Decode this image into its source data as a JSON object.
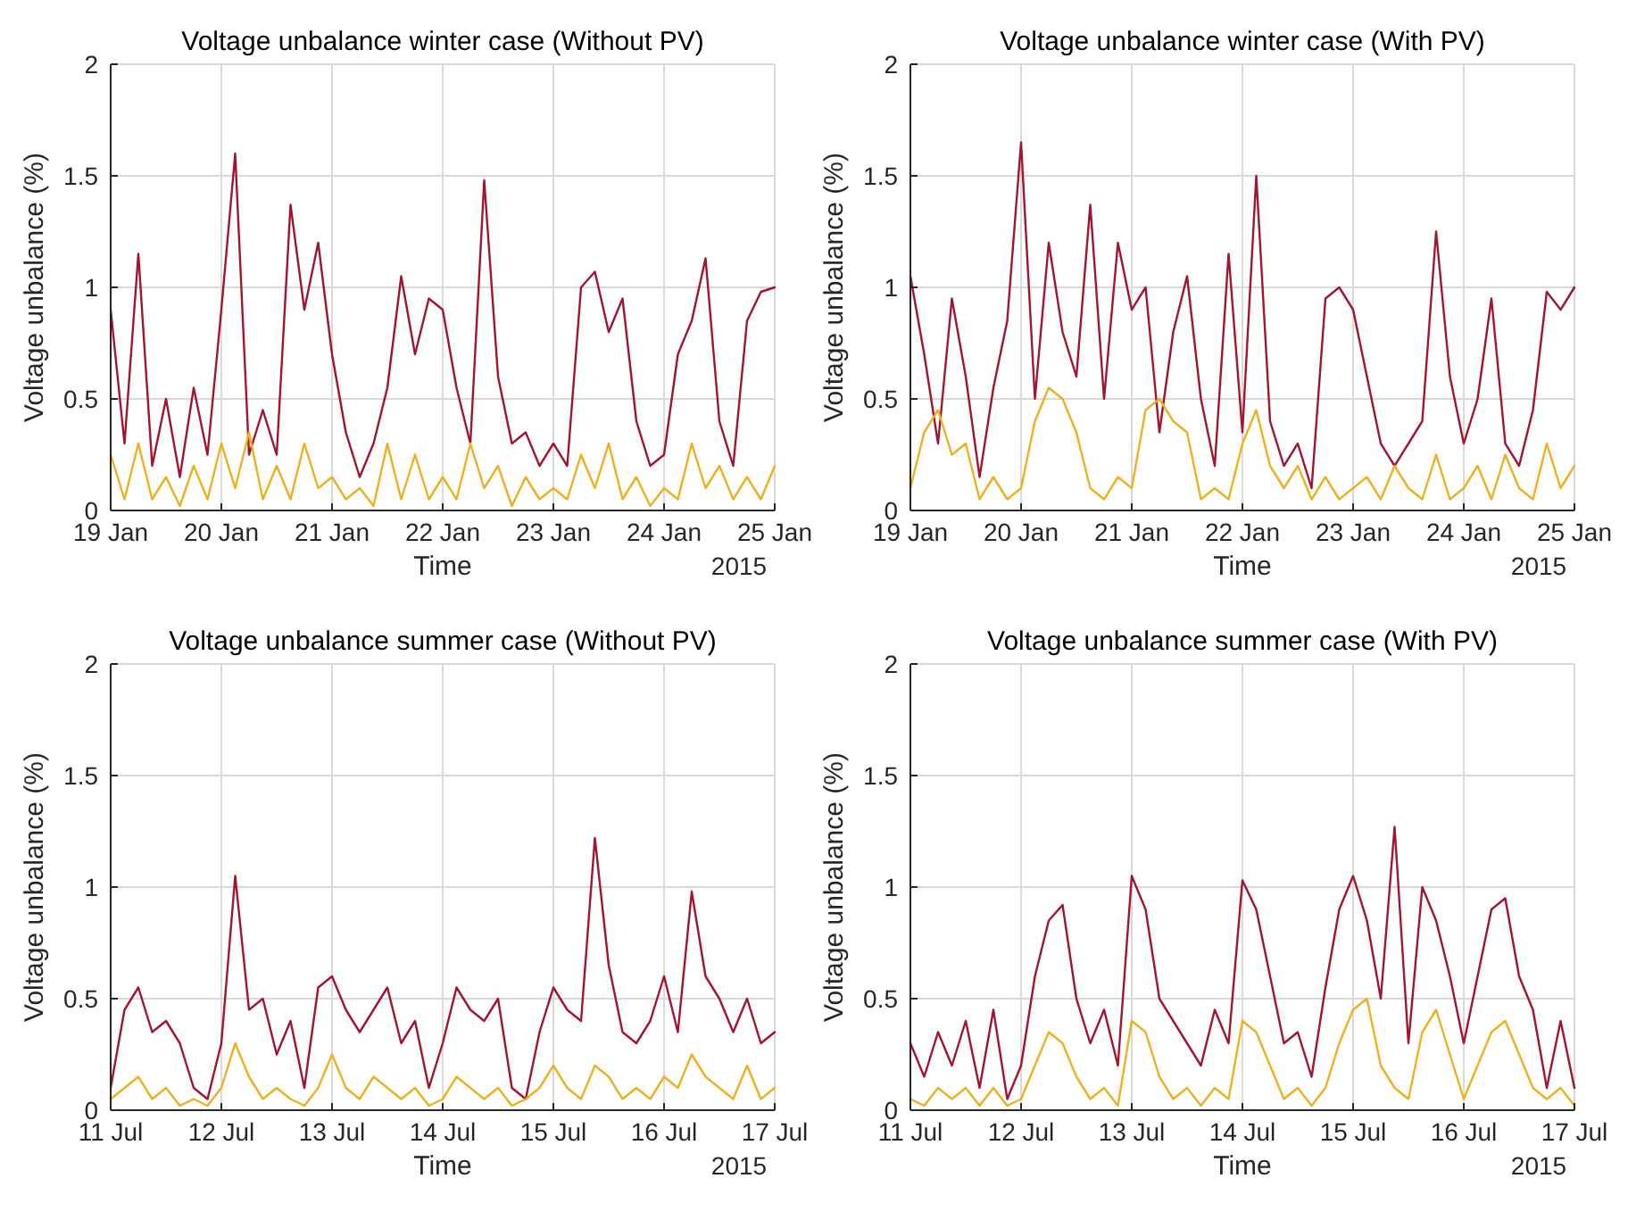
{
  "chart_data": [
    {
      "type": "line",
      "title": "Voltage unbalance winter case (Without PV)",
      "xlabel": "Time",
      "ylabel": "Voltage unbalance (%)",
      "annotations": [
        "2015"
      ],
      "grid": true,
      "ylim": [
        0,
        2
      ],
      "yticks": [
        0,
        0.5,
        1,
        1.5,
        2
      ],
      "xlim": [
        "2015-01-19",
        "2015-01-25"
      ],
      "xticks": [
        {
          "value": "2015-01-19",
          "label": "19 Jan"
        },
        {
          "value": "2015-01-20",
          "label": "20 Jan"
        },
        {
          "value": "2015-01-21",
          "label": "21 Jan"
        },
        {
          "value": "2015-01-22",
          "label": "22 Jan"
        },
        {
          "value": "2015-01-23",
          "label": "23 Jan"
        },
        {
          "value": "2015-01-24",
          "label": "24 Jan"
        },
        {
          "value": "2015-01-25",
          "label": "25 Jan"
        }
      ],
      "x": [
        "2015-01-19T00:00",
        "2015-01-19T03:00",
        "2015-01-19T06:00",
        "2015-01-19T09:00",
        "2015-01-19T12:00",
        "2015-01-19T15:00",
        "2015-01-19T18:00",
        "2015-01-19T21:00",
        "2015-01-20T00:00",
        "2015-01-20T03:00",
        "2015-01-20T06:00",
        "2015-01-20T09:00",
        "2015-01-20T12:00",
        "2015-01-20T15:00",
        "2015-01-20T18:00",
        "2015-01-20T21:00",
        "2015-01-21T00:00",
        "2015-01-21T03:00",
        "2015-01-21T06:00",
        "2015-01-21T09:00",
        "2015-01-21T12:00",
        "2015-01-21T15:00",
        "2015-01-21T18:00",
        "2015-01-21T21:00",
        "2015-01-22T00:00",
        "2015-01-22T03:00",
        "2015-01-22T06:00",
        "2015-01-22T09:00",
        "2015-01-22T12:00",
        "2015-01-22T15:00",
        "2015-01-22T18:00",
        "2015-01-22T21:00",
        "2015-01-23T00:00",
        "2015-01-23T03:00",
        "2015-01-23T06:00",
        "2015-01-23T09:00",
        "2015-01-23T12:00",
        "2015-01-23T15:00",
        "2015-01-23T18:00",
        "2015-01-23T21:00",
        "2015-01-24T00:00",
        "2015-01-24T03:00",
        "2015-01-24T06:00",
        "2015-01-24T09:00",
        "2015-01-24T12:00",
        "2015-01-24T15:00",
        "2015-01-24T18:00",
        "2015-01-24T21:00",
        "2015-01-25T00:00"
      ],
      "series": [
        {
          "color": "#a2142f",
          "values": [
            0.9,
            0.3,
            1.15,
            0.2,
            0.5,
            0.15,
            0.55,
            0.25,
            0.9,
            1.6,
            0.25,
            0.45,
            0.25,
            1.37,
            0.9,
            1.2,
            0.7,
            0.35,
            0.15,
            0.3,
            0.55,
            1.05,
            0.7,
            0.95,
            0.9,
            0.55,
            0.3,
            1.48,
            0.6,
            0.3,
            0.35,
            0.2,
            0.3,
            0.2,
            1.0,
            1.07,
            0.8,
            0.95,
            0.4,
            0.2,
            0.25,
            0.7,
            0.85,
            1.13,
            0.4,
            0.2,
            0.85,
            0.98,
            1.0
          ]
        },
        {
          "color": "#edb120",
          "values": [
            0.25,
            0.05,
            0.3,
            0.05,
            0.15,
            0.02,
            0.2,
            0.05,
            0.3,
            0.1,
            0.35,
            0.05,
            0.2,
            0.05,
            0.3,
            0.1,
            0.15,
            0.05,
            0.1,
            0.02,
            0.3,
            0.05,
            0.25,
            0.05,
            0.15,
            0.05,
            0.3,
            0.1,
            0.2,
            0.02,
            0.15,
            0.05,
            0.1,
            0.05,
            0.25,
            0.1,
            0.3,
            0.05,
            0.15,
            0.02,
            0.1,
            0.05,
            0.3,
            0.1,
            0.2,
            0.05,
            0.15,
            0.05,
            0.2
          ]
        }
      ]
    },
    {
      "type": "line",
      "title": "Voltage unbalance winter case (With PV)",
      "xlabel": "Time",
      "ylabel": "Voltage unbalance (%)",
      "annotations": [
        "2015"
      ],
      "grid": true,
      "ylim": [
        0,
        2
      ],
      "yticks": [
        0,
        0.5,
        1,
        1.5,
        2
      ],
      "xlim": [
        "2015-01-19",
        "2015-01-25"
      ],
      "xticks": [
        {
          "value": "2015-01-19",
          "label": "19 Jan"
        },
        {
          "value": "2015-01-20",
          "label": "20 Jan"
        },
        {
          "value": "2015-01-21",
          "label": "21 Jan"
        },
        {
          "value": "2015-01-22",
          "label": "22 Jan"
        },
        {
          "value": "2015-01-23",
          "label": "23 Jan"
        },
        {
          "value": "2015-01-24",
          "label": "24 Jan"
        },
        {
          "value": "2015-01-25",
          "label": "25 Jan"
        }
      ],
      "x": [
        "2015-01-19T00:00",
        "2015-01-19T03:00",
        "2015-01-19T06:00",
        "2015-01-19T09:00",
        "2015-01-19T12:00",
        "2015-01-19T15:00",
        "2015-01-19T18:00",
        "2015-01-19T21:00",
        "2015-01-20T00:00",
        "2015-01-20T03:00",
        "2015-01-20T06:00",
        "2015-01-20T09:00",
        "2015-01-20T12:00",
        "2015-01-20T15:00",
        "2015-01-20T18:00",
        "2015-01-20T21:00",
        "2015-01-21T00:00",
        "2015-01-21T03:00",
        "2015-01-21T06:00",
        "2015-01-21T09:00",
        "2015-01-21T12:00",
        "2015-01-21T15:00",
        "2015-01-21T18:00",
        "2015-01-21T21:00",
        "2015-01-22T00:00",
        "2015-01-22T03:00",
        "2015-01-22T06:00",
        "2015-01-22T09:00",
        "2015-01-22T12:00",
        "2015-01-22T15:00",
        "2015-01-22T18:00",
        "2015-01-22T21:00",
        "2015-01-23T00:00",
        "2015-01-23T03:00",
        "2015-01-23T06:00",
        "2015-01-23T09:00",
        "2015-01-23T12:00",
        "2015-01-23T15:00",
        "2015-01-23T18:00",
        "2015-01-23T21:00",
        "2015-01-24T00:00",
        "2015-01-24T03:00",
        "2015-01-24T06:00",
        "2015-01-24T09:00",
        "2015-01-24T12:00",
        "2015-01-24T15:00",
        "2015-01-24T18:00",
        "2015-01-24T21:00",
        "2015-01-25T00:00"
      ],
      "series": [
        {
          "color": "#a2142f",
          "values": [
            1.05,
            0.7,
            0.3,
            0.95,
            0.6,
            0.15,
            0.55,
            0.85,
            1.65,
            0.5,
            1.2,
            0.8,
            0.6,
            1.37,
            0.5,
            1.2,
            0.9,
            1.0,
            0.35,
            0.8,
            1.05,
            0.5,
            0.2,
            1.15,
            0.35,
            1.5,
            0.4,
            0.2,
            0.3,
            0.1,
            0.95,
            1.0,
            0.9,
            0.6,
            0.3,
            0.2,
            0.3,
            0.4,
            1.25,
            0.6,
            0.3,
            0.5,
            0.95,
            0.3,
            0.2,
            0.45,
            0.98,
            0.9,
            1.0
          ]
        },
        {
          "color": "#edb120",
          "values": [
            0.1,
            0.35,
            0.45,
            0.25,
            0.3,
            0.05,
            0.15,
            0.05,
            0.1,
            0.4,
            0.55,
            0.5,
            0.35,
            0.1,
            0.05,
            0.15,
            0.1,
            0.45,
            0.5,
            0.4,
            0.35,
            0.05,
            0.1,
            0.05,
            0.3,
            0.45,
            0.2,
            0.1,
            0.2,
            0.05,
            0.15,
            0.05,
            0.1,
            0.15,
            0.05,
            0.2,
            0.1,
            0.05,
            0.25,
            0.05,
            0.1,
            0.2,
            0.05,
            0.25,
            0.1,
            0.05,
            0.3,
            0.1,
            0.2
          ]
        }
      ]
    },
    {
      "type": "line",
      "title": "Voltage unbalance summer case (Without PV)",
      "xlabel": "Time",
      "ylabel": "Voltage unbalance (%)",
      "annotations": [
        "2015"
      ],
      "grid": true,
      "ylim": [
        0,
        2
      ],
      "yticks": [
        0,
        0.5,
        1,
        1.5,
        2
      ],
      "xlim": [
        "2015-07-11",
        "2015-07-17"
      ],
      "xticks": [
        {
          "value": "2015-07-11",
          "label": "11 Jul"
        },
        {
          "value": "2015-07-12",
          "label": "12 Jul"
        },
        {
          "value": "2015-07-13",
          "label": "13 Jul"
        },
        {
          "value": "2015-07-14",
          "label": "14 Jul"
        },
        {
          "value": "2015-07-15",
          "label": "15 Jul"
        },
        {
          "value": "2015-07-16",
          "label": "16 Jul"
        },
        {
          "value": "2015-07-17",
          "label": "17 Jul"
        }
      ],
      "x": [
        "2015-07-11T00:00",
        "2015-07-11T03:00",
        "2015-07-11T06:00",
        "2015-07-11T09:00",
        "2015-07-11T12:00",
        "2015-07-11T15:00",
        "2015-07-11T18:00",
        "2015-07-11T21:00",
        "2015-07-12T00:00",
        "2015-07-12T03:00",
        "2015-07-12T06:00",
        "2015-07-12T09:00",
        "2015-07-12T12:00",
        "2015-07-12T15:00",
        "2015-07-12T18:00",
        "2015-07-12T21:00",
        "2015-07-13T00:00",
        "2015-07-13T03:00",
        "2015-07-13T06:00",
        "2015-07-13T09:00",
        "2015-07-13T12:00",
        "2015-07-13T15:00",
        "2015-07-13T18:00",
        "2015-07-13T21:00",
        "2015-07-14T00:00",
        "2015-07-14T03:00",
        "2015-07-14T06:00",
        "2015-07-14T09:00",
        "2015-07-14T12:00",
        "2015-07-14T15:00",
        "2015-07-14T18:00",
        "2015-07-14T21:00",
        "2015-07-15T00:00",
        "2015-07-15T03:00",
        "2015-07-15T06:00",
        "2015-07-15T09:00",
        "2015-07-15T12:00",
        "2015-07-15T15:00",
        "2015-07-15T18:00",
        "2015-07-15T21:00",
        "2015-07-16T00:00",
        "2015-07-16T03:00",
        "2015-07-16T06:00",
        "2015-07-16T09:00",
        "2015-07-16T12:00",
        "2015-07-16T15:00",
        "2015-07-16T18:00",
        "2015-07-16T21:00",
        "2015-07-17T00:00"
      ],
      "series": [
        {
          "color": "#a2142f",
          "values": [
            0.1,
            0.45,
            0.55,
            0.35,
            0.4,
            0.3,
            0.1,
            0.05,
            0.3,
            1.05,
            0.45,
            0.5,
            0.25,
            0.4,
            0.1,
            0.55,
            0.6,
            0.45,
            0.35,
            0.45,
            0.55,
            0.3,
            0.4,
            0.1,
            0.3,
            0.55,
            0.45,
            0.4,
            0.5,
            0.1,
            0.05,
            0.35,
            0.55,
            0.45,
            0.4,
            1.22,
            0.65,
            0.35,
            0.3,
            0.4,
            0.6,
            0.35,
            0.98,
            0.6,
            0.5,
            0.35,
            0.5,
            0.3,
            0.35
          ]
        },
        {
          "color": "#edb120",
          "values": [
            0.05,
            0.1,
            0.15,
            0.05,
            0.1,
            0.02,
            0.05,
            0.02,
            0.1,
            0.3,
            0.15,
            0.05,
            0.1,
            0.05,
            0.02,
            0.1,
            0.25,
            0.1,
            0.05,
            0.15,
            0.1,
            0.05,
            0.1,
            0.02,
            0.05,
            0.15,
            0.1,
            0.05,
            0.1,
            0.02,
            0.05,
            0.1,
            0.2,
            0.1,
            0.05,
            0.2,
            0.15,
            0.05,
            0.1,
            0.05,
            0.15,
            0.1,
            0.25,
            0.15,
            0.1,
            0.05,
            0.2,
            0.05,
            0.1
          ]
        }
      ]
    },
    {
      "type": "line",
      "title": "Voltage unbalance summer case (With PV)",
      "xlabel": "Time",
      "ylabel": "Voltage unbalance (%)",
      "annotations": [
        "2015"
      ],
      "grid": true,
      "ylim": [
        0,
        2
      ],
      "yticks": [
        0,
        0.5,
        1,
        1.5,
        2
      ],
      "xlim": [
        "2015-07-11",
        "2015-07-17"
      ],
      "xticks": [
        {
          "value": "2015-07-11",
          "label": "11 Jul"
        },
        {
          "value": "2015-07-12",
          "label": "12 Jul"
        },
        {
          "value": "2015-07-13",
          "label": "13 Jul"
        },
        {
          "value": "2015-07-14",
          "label": "14 Jul"
        },
        {
          "value": "2015-07-15",
          "label": "15 Jul"
        },
        {
          "value": "2015-07-16",
          "label": "16 Jul"
        },
        {
          "value": "2015-07-17",
          "label": "17 Jul"
        }
      ],
      "x": [
        "2015-07-11T00:00",
        "2015-07-11T03:00",
        "2015-07-11T06:00",
        "2015-07-11T09:00",
        "2015-07-11T12:00",
        "2015-07-11T15:00",
        "2015-07-11T18:00",
        "2015-07-11T21:00",
        "2015-07-12T00:00",
        "2015-07-12T03:00",
        "2015-07-12T06:00",
        "2015-07-12T09:00",
        "2015-07-12T12:00",
        "2015-07-12T15:00",
        "2015-07-12T18:00",
        "2015-07-12T21:00",
        "2015-07-13T00:00",
        "2015-07-13T03:00",
        "2015-07-13T06:00",
        "2015-07-13T09:00",
        "2015-07-13T12:00",
        "2015-07-13T15:00",
        "2015-07-13T18:00",
        "2015-07-13T21:00",
        "2015-07-14T00:00",
        "2015-07-14T03:00",
        "2015-07-14T06:00",
        "2015-07-14T09:00",
        "2015-07-14T12:00",
        "2015-07-14T15:00",
        "2015-07-14T18:00",
        "2015-07-14T21:00",
        "2015-07-15T00:00",
        "2015-07-15T03:00",
        "2015-07-15T06:00",
        "2015-07-15T09:00",
        "2015-07-15T12:00",
        "2015-07-15T15:00",
        "2015-07-15T18:00",
        "2015-07-15T21:00",
        "2015-07-16T00:00",
        "2015-07-16T03:00",
        "2015-07-16T06:00",
        "2015-07-16T09:00",
        "2015-07-16T12:00",
        "2015-07-16T15:00",
        "2015-07-16T18:00",
        "2015-07-16T21:00",
        "2015-07-17T00:00"
      ],
      "series": [
        {
          "color": "#a2142f",
          "values": [
            0.3,
            0.15,
            0.35,
            0.2,
            0.4,
            0.1,
            0.45,
            0.05,
            0.2,
            0.6,
            0.85,
            0.92,
            0.5,
            0.3,
            0.45,
            0.2,
            1.05,
            0.9,
            0.5,
            0.4,
            0.3,
            0.2,
            0.45,
            0.3,
            1.03,
            0.9,
            0.6,
            0.3,
            0.35,
            0.15,
            0.55,
            0.9,
            1.05,
            0.85,
            0.5,
            1.27,
            0.3,
            1.0,
            0.85,
            0.6,
            0.3,
            0.6,
            0.9,
            0.95,
            0.6,
            0.45,
            0.1,
            0.4,
            0.1
          ]
        },
        {
          "color": "#edb120",
          "values": [
            0.05,
            0.02,
            0.1,
            0.05,
            0.1,
            0.02,
            0.1,
            0.02,
            0.05,
            0.2,
            0.35,
            0.3,
            0.15,
            0.05,
            0.1,
            0.02,
            0.4,
            0.35,
            0.15,
            0.05,
            0.1,
            0.02,
            0.1,
            0.05,
            0.4,
            0.35,
            0.2,
            0.05,
            0.1,
            0.02,
            0.1,
            0.3,
            0.45,
            0.5,
            0.2,
            0.1,
            0.05,
            0.35,
            0.45,
            0.25,
            0.05,
            0.2,
            0.35,
            0.4,
            0.25,
            0.1,
            0.05,
            0.1,
            0.02
          ]
        }
      ]
    }
  ]
}
